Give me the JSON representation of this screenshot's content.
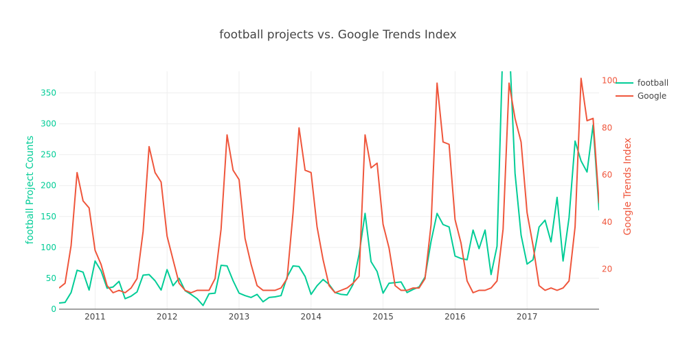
{
  "chart_data": {
    "type": "line",
    "title": "football projects vs. Google Trends Index",
    "y_left": {
      "label": "football Project Counts",
      "ticks": [
        0,
        50,
        100,
        150,
        200,
        250,
        300,
        350
      ],
      "ylim": [
        0,
        385
      ]
    },
    "y_right": {
      "label": "Google Trends Index",
      "ticks": [
        20,
        40,
        60,
        80,
        100
      ],
      "ylim": [
        3,
        104
      ]
    },
    "x": {
      "ticks": [
        "2011",
        "2012",
        "2013",
        "2014",
        "2015",
        "2016",
        "2017"
      ],
      "xlim": [
        2010.5,
        2018.0
      ]
    },
    "grid": true,
    "legend_position": "top-right",
    "series": [
      {
        "name": "football",
        "axis": "left",
        "color": "#00cc96",
        "x": [
          2010.5,
          2010.583,
          2010.667,
          2010.75,
          2010.833,
          2010.917,
          2011.0,
          2011.083,
          2011.167,
          2011.25,
          2011.333,
          2011.417,
          2011.5,
          2011.583,
          2011.667,
          2011.75,
          2011.833,
          2011.917,
          2012.0,
          2012.083,
          2012.167,
          2012.25,
          2012.333,
          2012.417,
          2012.5,
          2012.583,
          2012.667,
          2012.75,
          2012.833,
          2012.917,
          2013.0,
          2013.083,
          2013.167,
          2013.25,
          2013.333,
          2013.417,
          2013.5,
          2013.583,
          2013.667,
          2013.75,
          2013.833,
          2013.917,
          2014.0,
          2014.083,
          2014.167,
          2014.25,
          2014.333,
          2014.417,
          2014.5,
          2014.583,
          2014.667,
          2014.75,
          2014.833,
          2014.917,
          2015.0,
          2015.083,
          2015.167,
          2015.25,
          2015.333,
          2015.417,
          2015.5,
          2015.583,
          2015.667,
          2015.75,
          2015.833,
          2015.917,
          2016.0,
          2016.083,
          2016.167,
          2016.25,
          2016.333,
          2016.417,
          2016.5,
          2016.583,
          2016.667,
          2016.75,
          2016.833,
          2016.917,
          2017.0,
          2017.083,
          2017.167,
          2017.25,
          2017.333,
          2017.417,
          2017.5,
          2017.583,
          2017.667,
          2017.75,
          2017.833,
          2017.917,
          2018.0
        ],
        "values": [
          10,
          11,
          27,
          63,
          60,
          31,
          78,
          62,
          34,
          36,
          45,
          17,
          21,
          28,
          55,
          56,
          46,
          31,
          64,
          38,
          50,
          30,
          24,
          17,
          6,
          25,
          26,
          71,
          70,
          46,
          26,
          22,
          19,
          24,
          12,
          19,
          20,
          22,
          52,
          70,
          69,
          53,
          24,
          38,
          48,
          40,
          27,
          24,
          23,
          40,
          89,
          155,
          77,
          61,
          26,
          42,
          43,
          44,
          27,
          32,
          36,
          52,
          110,
          155,
          137,
          133,
          86,
          82,
          80,
          128,
          98,
          128,
          56,
          102,
          440,
          440,
          220,
          120,
          73,
          80,
          133,
          144,
          109,
          181,
          78,
          148,
          272,
          240,
          222,
          298,
          160
        ]
      },
      {
        "name": "Google",
        "axis": "right",
        "color": "#ef553b",
        "x": [
          2010.5,
          2010.583,
          2010.667,
          2010.75,
          2010.833,
          2010.917,
          2011.0,
          2011.083,
          2011.167,
          2011.25,
          2011.333,
          2011.417,
          2011.5,
          2011.583,
          2011.667,
          2011.75,
          2011.833,
          2011.917,
          2012.0,
          2012.083,
          2012.167,
          2012.25,
          2012.333,
          2012.417,
          2012.5,
          2012.583,
          2012.667,
          2012.75,
          2012.833,
          2012.917,
          2013.0,
          2013.083,
          2013.167,
          2013.25,
          2013.333,
          2013.417,
          2013.5,
          2013.583,
          2013.667,
          2013.75,
          2013.833,
          2013.917,
          2014.0,
          2014.083,
          2014.167,
          2014.25,
          2014.333,
          2014.417,
          2014.5,
          2014.583,
          2014.667,
          2014.75,
          2014.833,
          2014.917,
          2015.0,
          2015.083,
          2015.167,
          2015.25,
          2015.333,
          2015.417,
          2015.5,
          2015.583,
          2015.667,
          2015.75,
          2015.833,
          2015.917,
          2016.0,
          2016.083,
          2016.167,
          2016.25,
          2016.333,
          2016.417,
          2016.5,
          2016.583,
          2016.667,
          2016.75,
          2016.833,
          2016.917,
          2017.0,
          2017.083,
          2017.167,
          2017.25,
          2017.333,
          2017.417,
          2017.5,
          2017.583,
          2017.667,
          2017.75,
          2017.833,
          2017.917,
          2018.0
        ],
        "values": [
          12,
          14,
          30,
          61,
          49,
          46,
          28,
          22,
          13,
          10,
          11,
          10,
          12,
          16,
          36,
          72,
          61,
          57,
          34,
          24,
          14,
          11,
          10,
          11,
          11,
          11,
          16,
          37,
          77,
          62,
          58,
          33,
          22,
          13,
          11,
          11,
          11,
          12,
          16,
          44,
          80,
          62,
          61,
          38,
          24,
          13,
          10,
          11,
          12,
          14,
          17,
          77,
          63,
          65,
          39,
          29,
          13,
          11,
          11,
          12,
          12,
          16,
          39,
          99,
          74,
          73,
          41,
          31,
          15,
          10,
          11,
          11,
          12,
          15,
          37,
          99,
          84,
          74,
          44,
          30,
          13,
          11,
          12,
          11,
          12,
          15,
          38,
          101,
          83,
          84,
          48
        ]
      }
    ]
  }
}
